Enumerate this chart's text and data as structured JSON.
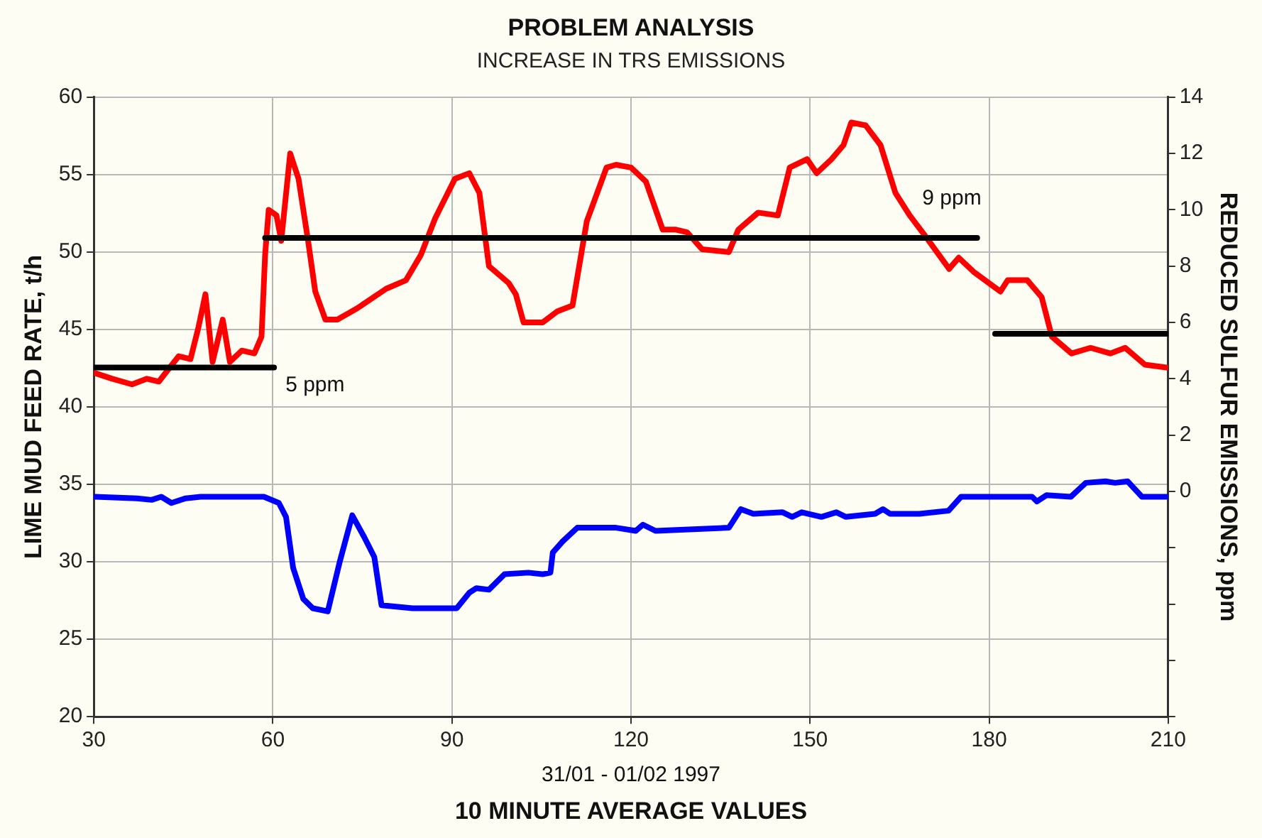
{
  "chart_data": {
    "type": "line",
    "title": "PROBLEM ANALYSIS",
    "subtitle": "INCREASE IN TRS EMISSIONS",
    "xlabel": "10 MINUTE AVERAGE VALUES",
    "ylabel": "LIME MUD FEED RATE, t/h",
    "y2label": "REDUCED SULFUR EMISSIONS, ppm",
    "annotations": [
      "31/01 - 01/02 1997"
    ],
    "xlim": [
      30,
      210
    ],
    "xticks": [
      30,
      60,
      90,
      120,
      150,
      180,
      210
    ],
    "ylim": [
      20,
      60
    ],
    "yticks": [
      20,
      25,
      30,
      35,
      40,
      45,
      50,
      55,
      60
    ],
    "y2lim": [
      -8,
      14
    ],
    "y2ticks": [
      {
        "value": -8,
        "label": null
      },
      {
        "value": -6,
        "label": null
      },
      {
        "value": -4,
        "label": null
      },
      {
        "value": -2,
        "label": null
      },
      0,
      2,
      4,
      6,
      8,
      10,
      12,
      14
    ],
    "grid": true,
    "legend": false,
    "marker": "none",
    "line_style": "solid",
    "series": [
      {
        "color": "#ff0000",
        "axis": "y2",
        "x": [
          30.2,
          33.1,
          36.4,
          38.9,
          40.9,
          44.2,
          46.2,
          47.5,
          48.7,
          49.9,
          51.6,
          52.8,
          54.8,
          56.9,
          58.1,
          58.7,
          59.3,
          60.6,
          61.4,
          62.9,
          64.3,
          65.9,
          67.1,
          68.8,
          70.8,
          74.1,
          79.0,
          82.3,
          84.8,
          87.2,
          90.5,
          92.9,
          94.6,
          96.2,
          99.5,
          100.7,
          102.0,
          105.2,
          107.7,
          110.2,
          112.6,
          115.9,
          117.5,
          120.0,
          122.5,
          125.3,
          127.4,
          129.4,
          131.9,
          136.4,
          138.0,
          141.3,
          144.6,
          146.6,
          149.5,
          151.1,
          153.6,
          155.6,
          156.9,
          159.3,
          161.8,
          164.3,
          166.7,
          169.2,
          173.3,
          174.9,
          177.4,
          181.9,
          183.1,
          186.4,
          188.8,
          190.5,
          193.8,
          197.0,
          200.3,
          202.8,
          206.1,
          209.7
        ],
        "values": [
          4.2,
          4.0,
          3.8,
          4.0,
          3.9,
          4.8,
          4.7,
          5.8,
          7.0,
          4.6,
          6.1,
          4.6,
          5.0,
          4.9,
          5.5,
          8.4,
          10.0,
          9.8,
          8.9,
          12.0,
          11.1,
          8.9,
          7.1,
          6.1,
          6.1,
          6.5,
          7.2,
          7.5,
          8.4,
          9.7,
          11.1,
          11.3,
          10.6,
          8.0,
          7.4,
          7.0,
          6.0,
          6.0,
          6.4,
          6.6,
          9.6,
          11.5,
          11.6,
          11.5,
          11.0,
          9.3,
          9.3,
          9.2,
          8.6,
          8.5,
          9.3,
          9.9,
          9.8,
          11.5,
          11.8,
          11.3,
          11.8,
          12.3,
          13.1,
          13.0,
          12.3,
          10.6,
          9.8,
          9.1,
          7.9,
          8.3,
          7.8,
          7.1,
          7.5,
          7.5,
          6.9,
          5.5,
          4.9,
          5.1,
          4.9,
          5.1,
          4.5,
          4.4
        ]
      },
      {
        "color": "#0000ff",
        "x": [
          30.2,
          37.2,
          39.7,
          41.3,
          43.0,
          45.4,
          47.9,
          58.5,
          61.0,
          62.2,
          63.4,
          65.1,
          66.7,
          69.2,
          71.2,
          73.3,
          75.3,
          77.0,
          78.2,
          83.4,
          90.8,
          92.9,
          94.1,
          96.2,
          98.8,
          102.8,
          105.2,
          106.5,
          106.9,
          108.5,
          111.0,
          115.2,
          117.5,
          120.8,
          122.0,
          124.1,
          136.4,
          138.4,
          140.5,
          145.4,
          147.0,
          148.6,
          151.9,
          154.4,
          156.0,
          160.9,
          162.2,
          163.4,
          168.3,
          173.2,
          175.3,
          177.3,
          187.2,
          188.0,
          189.6,
          193.7,
          196.2,
          199.5,
          201.1,
          203.2,
          205.6,
          209.7
        ],
        "values": [
          34.2,
          34.1,
          34.0,
          34.2,
          33.8,
          34.1,
          34.2,
          34.2,
          33.8,
          32.9,
          29.6,
          27.6,
          27.0,
          26.8,
          30.0,
          33.0,
          31.6,
          30.3,
          27.2,
          27.0,
          27.0,
          28.0,
          28.3,
          28.2,
          29.2,
          29.3,
          29.2,
          29.3,
          30.6,
          31.3,
          32.2,
          32.2,
          32.2,
          32.0,
          32.4,
          32.0,
          32.2,
          33.4,
          33.1,
          33.2,
          32.9,
          33.2,
          32.9,
          33.2,
          32.9,
          33.1,
          33.4,
          33.1,
          33.1,
          33.3,
          34.2,
          34.2,
          34.2,
          33.9,
          34.3,
          34.2,
          35.1,
          35.2,
          35.1,
          35.2,
          34.2,
          34.2
        ]
      },
      {
        "name": "5 ppm",
        "color": "#000000",
        "axis": "y2",
        "x": [
          30,
          60.2
        ],
        "values": [
          4.4,
          4.4
        ]
      },
      {
        "name": "9 ppm",
        "color": "#000000",
        "axis": "y2",
        "x": [
          58.7,
          178.0
        ],
        "values": [
          9.0,
          9.0
        ]
      },
      {
        "color": "#000000",
        "axis": "y2",
        "x": [
          181.0,
          210
        ],
        "values": [
          5.6,
          5.6
        ]
      }
    ]
  }
}
